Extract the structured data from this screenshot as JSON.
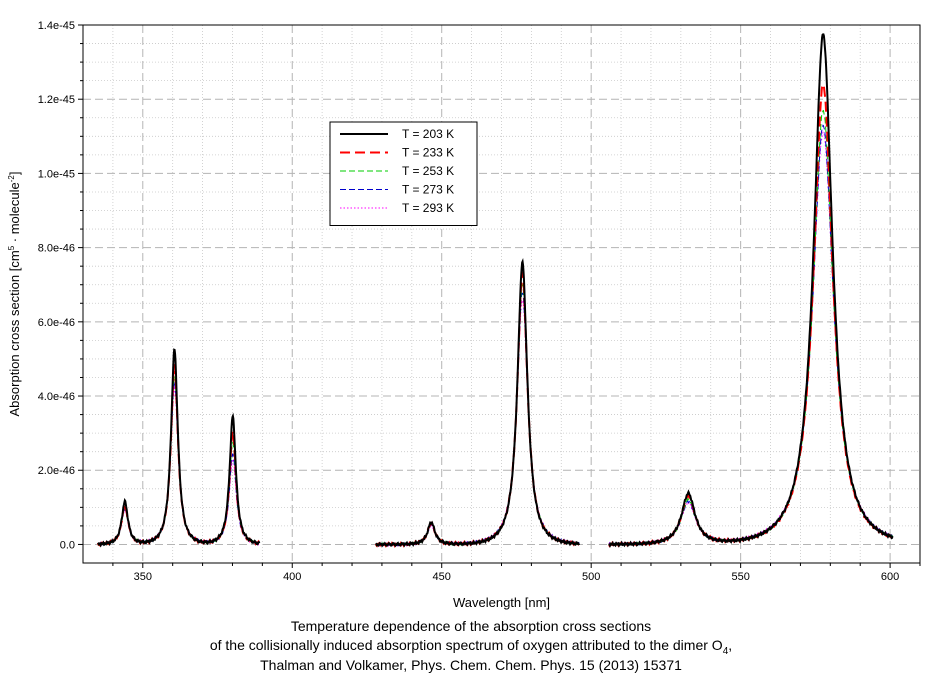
{
  "chart_data": {
    "type": "line",
    "title": "",
    "xlabel": "Wavelength [nm]",
    "ylabel_main": "Absorption cross section [cm",
    "ylabel_exp1": "5",
    "ylabel_mid": " · molecule",
    "ylabel_exp2": "-2",
    "ylabel_end": "]",
    "xlim": [
      330,
      610
    ],
    "ylim": [
      -5e-47,
      1.4e-45
    ],
    "x_ticks": [
      350,
      400,
      450,
      500,
      550,
      600
    ],
    "x_tick_labels": [
      "350",
      "400",
      "450",
      "500",
      "550",
      "600"
    ],
    "y_ticks": [
      0,
      2e-46,
      4e-46,
      6e-46,
      8e-46,
      1e-45,
      1.2e-45,
      1.4e-45
    ],
    "y_tick_labels": [
      "0.0",
      "2.0e-46",
      "4.0e-46",
      "6.0e-46",
      "8.0e-46",
      "1.0e-45",
      "1.2e-45",
      "1.4e-45"
    ],
    "grid": true,
    "legend_position": "upper-left-center",
    "segments": [
      [
        335,
        389
      ],
      [
        428,
        496
      ],
      [
        506,
        601
      ]
    ],
    "peak_positions_nm": [
      344.0,
      360.6,
      380.1,
      446.5,
      477.0,
      532.5,
      577.6
    ],
    "series": [
      {
        "name": "T = 203 K",
        "color": "#000000",
        "dash": "solid",
        "width": 2,
        "peak_heights": [
          1.15e-46,
          5.25e-46,
          3.45e-46,
          6e-47,
          7.6e-46,
          1.37e-46,
          1.375e-45
        ]
      },
      {
        "name": "T = 233 K",
        "color": "#ff0000",
        "dash": "long-dash",
        "width": 2,
        "peak_heights": [
          1.05e-46,
          4.85e-46,
          3.05e-46,
          5.8e-47,
          7.3e-46,
          1.3e-46,
          1.24e-45
        ]
      },
      {
        "name": "T = 253 K",
        "color": "#00cc00",
        "dash": "dash",
        "width": 1,
        "peak_heights": [
          1e-46,
          4.55e-46,
          2.75e-46,
          5.5e-47,
          7e-46,
          1.2e-46,
          1.17e-45
        ]
      },
      {
        "name": "T = 273 K",
        "color": "#0000cc",
        "dash": "dash",
        "width": 1,
        "peak_heights": [
          9.5e-47,
          4.4e-46,
          2.45e-46,
          5.3e-47,
          6.8e-46,
          1.15e-46,
          1.13e-45
        ]
      },
      {
        "name": "T = 293 K",
        "color": "#ff00ff",
        "dash": "dot",
        "width": 1,
        "peak_heights": [
          9e-47,
          4.2e-46,
          2.3e-46,
          5e-47,
          6.6e-46,
          1.1e-46,
          1.11e-45
        ]
      }
    ]
  },
  "caption": {
    "line1": "Temperature dependence of the absorption cross sections",
    "line2_prefix": "of the collisionally induced absorption spectrum of oxygen attributed to the dimer O",
    "line2_sub": "4",
    "line2_suffix": ",",
    "line3": "Thalman and Volkamer, Phys. Chem. Chem. Phys. 15 (2013) 15371"
  }
}
